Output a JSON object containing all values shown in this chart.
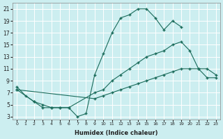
{
  "xlabel": "Humidex (Indice chaleur)",
  "bg_color": "#cceef0",
  "grid_color": "#ffffff",
  "line_color": "#1a6b5a",
  "xlim": [
    -0.5,
    23.5
  ],
  "ylim": [
    2.5,
    22
  ],
  "xticks": [
    0,
    1,
    2,
    3,
    4,
    5,
    6,
    7,
    8,
    9,
    10,
    11,
    12,
    13,
    14,
    15,
    16,
    17,
    18,
    19,
    20,
    21,
    22,
    23
  ],
  "yticks": [
    3,
    5,
    7,
    9,
    11,
    13,
    15,
    17,
    19,
    21
  ],
  "series": [
    {
      "x": [
        0,
        1,
        2,
        3,
        4,
        5,
        6,
        7,
        8,
        9,
        10,
        11,
        12,
        13,
        14,
        15,
        16,
        17,
        18,
        19
      ],
      "y": [
        8,
        6.5,
        5.5,
        4.5,
        4.5,
        4.5,
        4.5,
        3,
        3.5,
        10,
        13.5,
        17,
        19.5,
        20,
        21,
        21,
        19.5,
        17.5,
        19,
        18
      ]
    },
    {
      "x": [
        0,
        2,
        3,
        4,
        5,
        6,
        9,
        10,
        11,
        12,
        13,
        14,
        15,
        16,
        17,
        18,
        19,
        20,
        21,
        22,
        23
      ],
      "y": [
        7.5,
        5.5,
        5,
        4.5,
        4.5,
        4.5,
        7,
        7.5,
        9,
        10,
        11,
        12,
        13,
        13.5,
        14,
        15,
        15.5,
        14,
        11,
        11,
        10
      ]
    },
    {
      "x": [
        0,
        9,
        10,
        11,
        12,
        13,
        14,
        15,
        16,
        17,
        18,
        19,
        20,
        21,
        22,
        23
      ],
      "y": [
        7.5,
        6,
        6.5,
        7,
        7.5,
        8,
        8.5,
        9,
        9.5,
        10,
        10.5,
        11,
        11,
        11,
        9.5,
        9.5
      ]
    }
  ]
}
